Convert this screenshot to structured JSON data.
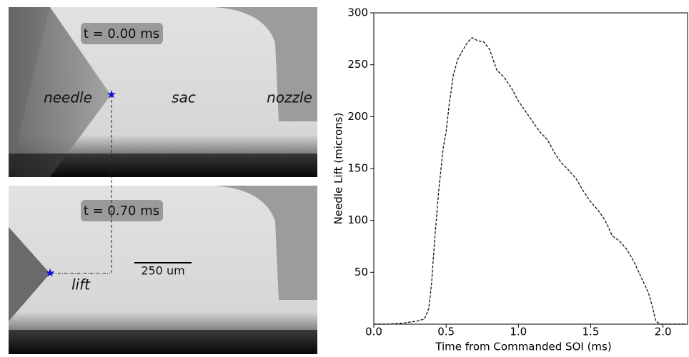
{
  "images": {
    "top": {
      "time": "t = 0.00 ms",
      "labels": [
        "needle",
        "sac",
        "nozzle"
      ]
    },
    "bottom": {
      "time": "t = 0.70 ms",
      "scale": "250 um",
      "lift": "lift"
    }
  },
  "chart_data": {
    "type": "line",
    "xlabel": "Time from Commanded SOI (ms)",
    "ylabel": "Needle Lift (microns)",
    "xlim": [
      0,
      2.17
    ],
    "ylim": [
      0,
      300
    ],
    "xticks": [
      {
        "value": 0,
        "label": "0.0"
      },
      0.5,
      {
        "value": 1,
        "label": "1.0"
      },
      1.5,
      {
        "value": 2,
        "label": "2.0"
      }
    ],
    "yticks": [
      50,
      100,
      150,
      200,
      250,
      300
    ],
    "series": [
      {
        "color": "#222222",
        "dashed": true,
        "x": [
          0,
          0.1,
          0.2,
          0.3,
          0.35,
          0.38,
          0.4,
          0.42,
          0.45,
          0.48,
          0.5,
          0.52,
          0.55,
          0.58,
          0.62,
          0.65,
          0.68,
          0.72,
          0.76,
          0.8,
          0.85,
          0.9,
          0.95,
          1.0,
          1.05,
          1.1,
          1.15,
          1.2,
          1.25,
          1.3,
          1.35,
          1.4,
          1.45,
          1.5,
          1.55,
          1.6,
          1.65,
          1.7,
          1.75,
          1.8,
          1.85,
          1.9,
          1.93,
          1.95,
          1.98,
          2.05,
          2.15
        ],
        "values": [
          0,
          0,
          1,
          3,
          5,
          15,
          40,
          80,
          130,
          170,
          185,
          210,
          240,
          255,
          265,
          272,
          276,
          273,
          272,
          265,
          245,
          238,
          228,
          215,
          205,
          195,
          185,
          178,
          165,
          155,
          148,
          140,
          128,
          118,
          110,
          100,
          85,
          80,
          72,
          60,
          45,
          30,
          15,
          3,
          0,
          0,
          0
        ]
      }
    ]
  }
}
